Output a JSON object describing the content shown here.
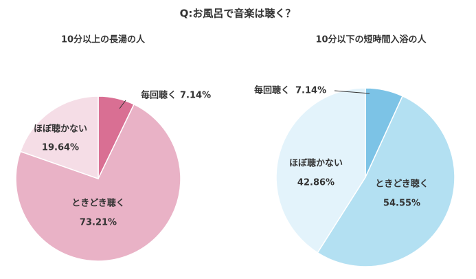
{
  "title": "Q:お風呂で音楽は聴く？",
  "chart_data": [
    {
      "type": "pie",
      "title": "10分以上の長湯の人",
      "categories": [
        "毎回聴く",
        "ときどき聴く",
        "ほぼ聴かない"
      ],
      "values": [
        7.14,
        73.21,
        19.64
      ],
      "value_labels": [
        "7.14%",
        "73.21%",
        "19.64%"
      ],
      "colors": [
        "#d96f93",
        "#e9b2c6",
        "#f5dde6"
      ]
    },
    {
      "type": "pie",
      "title": "10分以下の短時間入浴の人",
      "categories": [
        "毎回聴く",
        "ときどき聴く",
        "ほぼ聴かない"
      ],
      "values": [
        7.14,
        54.55,
        42.86
      ],
      "value_labels": [
        "7.14%",
        "54.55%",
        "42.86%"
      ],
      "colors": [
        "#7cc3e6",
        "#b3e0f2",
        "#e3f3fb"
      ]
    }
  ]
}
